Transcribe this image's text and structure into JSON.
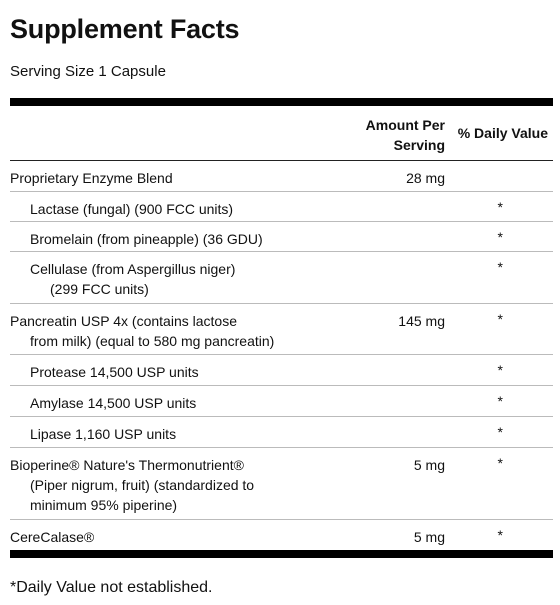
{
  "title": "Supplement Facts",
  "serving_size": "Serving Size 1 Capsule",
  "header": {
    "amount_line1": "Amount Per",
    "amount_line2": "Serving",
    "daily_value": "% Daily Value"
  },
  "rows": [
    {
      "lines": [
        "Proprietary Enzyme Blend"
      ],
      "amount": "28 mg",
      "dv": ""
    },
    {
      "lines": [
        "Lactase (fungal) (900 FCC units)"
      ],
      "amount": "",
      "dv": "*"
    },
    {
      "lines": [
        "Bromelain (from pineapple) (36 GDU)"
      ],
      "amount": "",
      "dv": "*"
    },
    {
      "lines": [
        "Cellulase (from Aspergillus niger)",
        "(299 FCC units)"
      ],
      "amount": "",
      "dv": "*"
    },
    {
      "lines": [
        "Pancreatin USP 4x (contains lactose",
        "from milk) (equal to 580 mg pancreatin)"
      ],
      "amount": "145 mg",
      "dv": "*"
    },
    {
      "lines": [
        "Protease 14,500 USP units"
      ],
      "amount": "",
      "dv": "*"
    },
    {
      "lines": [
        "Amylase 14,500 USP units"
      ],
      "amount": "",
      "dv": "*"
    },
    {
      "lines": [
        "Lipase 1,160 USP units"
      ],
      "amount": "",
      "dv": "*"
    },
    {
      "lines": [
        "Bioperine® Nature's Thermonutrient®",
        "(Piper nigrum, fruit) (standardized to",
        "minimum 95% piperine)"
      ],
      "amount": "5 mg",
      "dv": "*"
    },
    {
      "lines": [
        "CereCalase®"
      ],
      "amount": "5 mg",
      "dv": "*"
    }
  ],
  "footnote": "*Daily Value not established."
}
